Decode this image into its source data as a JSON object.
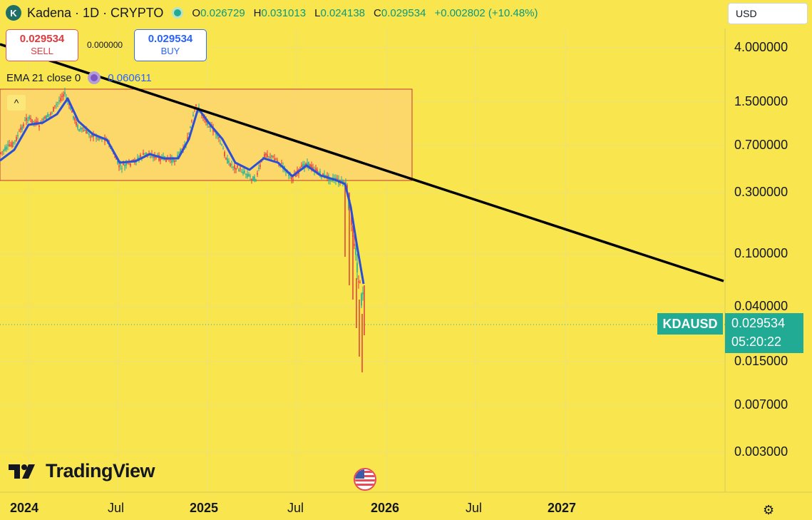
{
  "header": {
    "logo_letter": "K",
    "symbol_title": "Kadena · 1D · CRYPTO",
    "ohlc": [
      {
        "key": "O",
        "value": "0.026729"
      },
      {
        "key": "H",
        "value": "0.031013"
      },
      {
        "key": "L",
        "value": "0.024138"
      },
      {
        "key": "C",
        "value": "0.029534"
      }
    ],
    "change": "+0.002802 (+10.48%)"
  },
  "trade": {
    "sell_price": "0.029534",
    "sell_label": "SELL",
    "spread": "0.000000",
    "buy_price": "0.029534",
    "buy_label": "BUY"
  },
  "indicator": {
    "label": "EMA 21 close 0",
    "value": "0.060611",
    "collapse_glyph": "^"
  },
  "currency": {
    "selected": "USD",
    "chevron": "⌄"
  },
  "price_axis": {
    "labels": [
      "4.000000",
      "1.500000",
      "0.700000",
      "0.300000",
      "0.100000",
      "0.040000",
      "0.015000",
      "0.007000",
      "0.003000"
    ],
    "scale": "log"
  },
  "time_axis": {
    "labels": [
      {
        "text": "2024",
        "bold": true
      },
      {
        "text": "Jul",
        "bold": false
      },
      {
        "text": "2025",
        "bold": true
      },
      {
        "text": "Jul",
        "bold": false
      },
      {
        "text": "2026",
        "bold": true
      },
      {
        "text": "Jul",
        "bold": false
      },
      {
        "text": "2027",
        "bold": true
      }
    ]
  },
  "last_price": {
    "ticker": "KDAUSD",
    "price": "0.029534",
    "countdown": "05:20:22"
  },
  "branding": {
    "name": "TradingView"
  },
  "colors": {
    "background": "#f9e64f",
    "up": "#22ab94",
    "down": "#e03a3e",
    "ema": "#2b4fd6",
    "trendline": "#000000",
    "range_box": "#fcd373"
  }
}
